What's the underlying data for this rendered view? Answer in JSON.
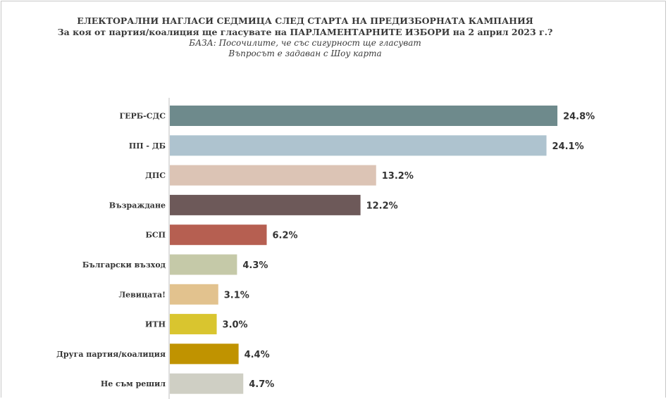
{
  "header": {
    "title": "ЕЛЕКТОРАЛНИ НАГЛАСИ СЕДМИЦА СЛЕД СТАРТА НА ПРЕДИЗБОРНАТА КАМПАНИЯ",
    "question": "За коя от партия/коалиция ще гласувате на ПАРЛАМЕНТАРНИТЕ ИЗБОРИ на 2 април 2023 г.?",
    "base": "БАЗА: Посочилите, че със сигурност ще гласуват",
    "note": "Въпросът е задаван с Шоу карта"
  },
  "chart_data": {
    "type": "bar",
    "orientation": "horizontal",
    "title": "ЕЛЕКТОРАЛНИ НАГЛАСИ СЕДМИЦА СЛЕД СТАРТА НА ПРЕДИЗБОРНАТА КАМПАНИЯ",
    "xlabel": "",
    "ylabel": "",
    "unit": "%",
    "grid": false,
    "legend": "none",
    "xlim": [
      0,
      25.5
    ],
    "categories": [
      "ГЕРБ-СДС",
      "ПП - ДБ",
      "ДПС",
      "Възраждане",
      "БСП",
      "Български възход",
      "Левицата!",
      "ИТН",
      "Друга партия/коалиция",
      "Не съм решил"
    ],
    "values": [
      24.8,
      24.1,
      13.2,
      12.2,
      6.2,
      4.3,
      3.1,
      3.0,
      4.4,
      4.7
    ],
    "labels": [
      "24.8%",
      "24.1%",
      "13.2%",
      "12.2%",
      "6.2%",
      "4.3%",
      "3.1%",
      "3.0%",
      "4.4%",
      "4.7%"
    ],
    "colors": [
      "#6e8a8c",
      "#aec3cf",
      "#dcc4b5",
      "#6d5959",
      "#b65f51",
      "#c5c9a8",
      "#e2c28e",
      "#d9c52f",
      "#c09300",
      "#cfcfc4"
    ]
  }
}
